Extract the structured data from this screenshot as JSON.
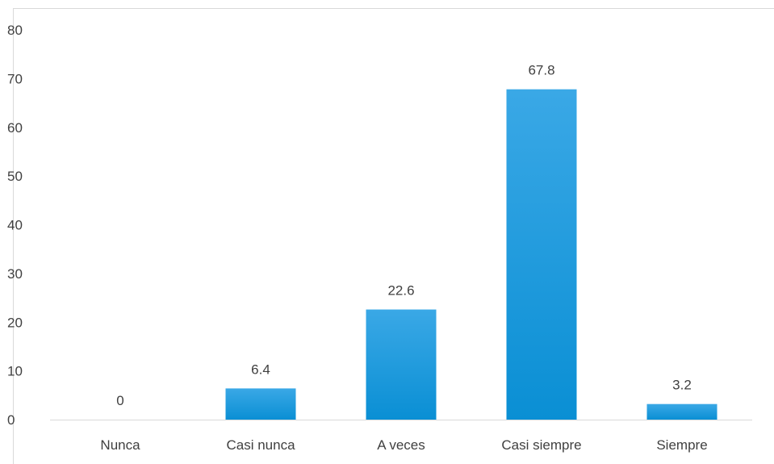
{
  "chart_data": {
    "type": "bar",
    "title": "",
    "xlabel": "",
    "ylabel": "",
    "categories": [
      "Nunca",
      "Casi nunca",
      "A veces",
      "Casi siempre",
      "Siempre"
    ],
    "values": [
      0,
      6.4,
      22.6,
      67.8,
      3.2
    ],
    "data_labels": [
      "0",
      "6.4",
      "22.6",
      "67.8",
      "3.2"
    ],
    "ylim": [
      0,
      80
    ],
    "yticks": [
      0,
      10,
      20,
      30,
      40,
      50,
      60,
      70,
      80
    ],
    "ytick_labels": [
      "0",
      "10",
      "20",
      "30",
      "40",
      "50",
      "60",
      "70",
      "80"
    ],
    "grid": false,
    "legend": "none",
    "bar_color_top": "#3aa8e6",
    "bar_color_bottom": "#0a8fd4",
    "axis_color": "#d9d9d9",
    "text_color": "#404040"
  }
}
